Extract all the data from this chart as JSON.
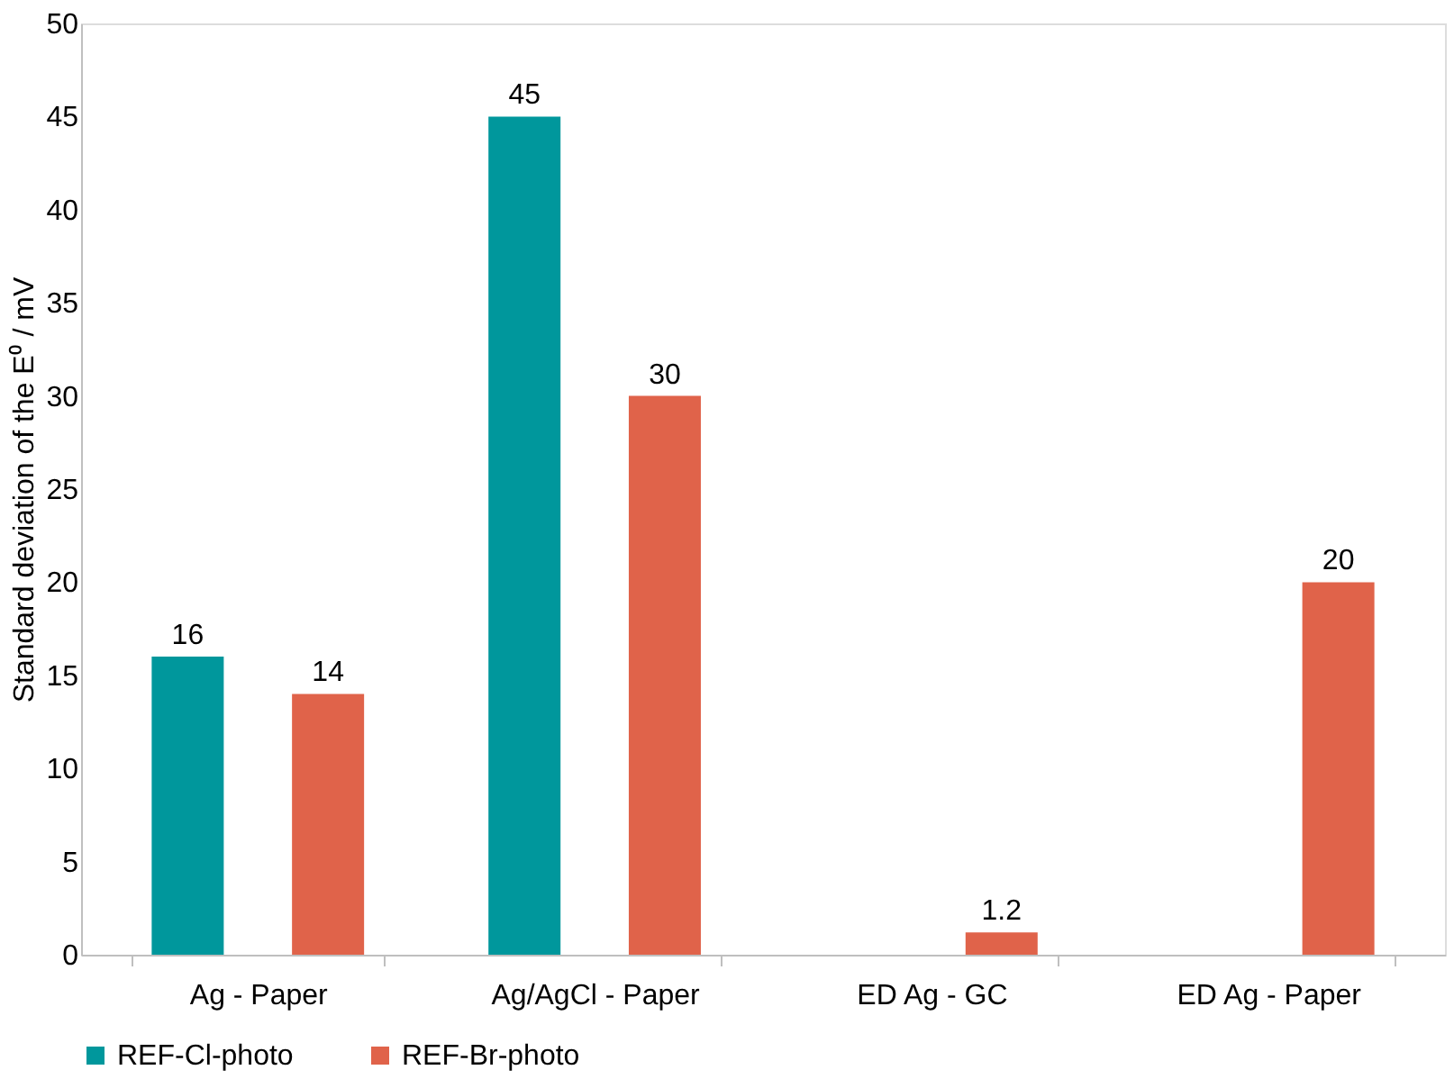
{
  "chart_data": {
    "type": "bar",
    "ylabel": "Standard deviation of the E⁰ / mV",
    "categories": [
      "Ag - Paper",
      "Ag/AgCl - Paper",
      "ED Ag - GC",
      "ED Ag - Paper"
    ],
    "series": [
      {
        "name": "REF-Cl-photo",
        "color": "#00979c",
        "values": [
          16,
          45,
          null,
          null
        ]
      },
      {
        "name": "REF-Br-photo",
        "color": "#e0634a",
        "values": [
          14,
          30,
          1.2,
          20
        ]
      }
    ],
    "ylim": [
      0,
      50
    ],
    "yticks": [
      0,
      5,
      10,
      15,
      20,
      25,
      30,
      35,
      40,
      45,
      50
    ],
    "grid": false,
    "legend": "bottom",
    "data_labels": true
  }
}
